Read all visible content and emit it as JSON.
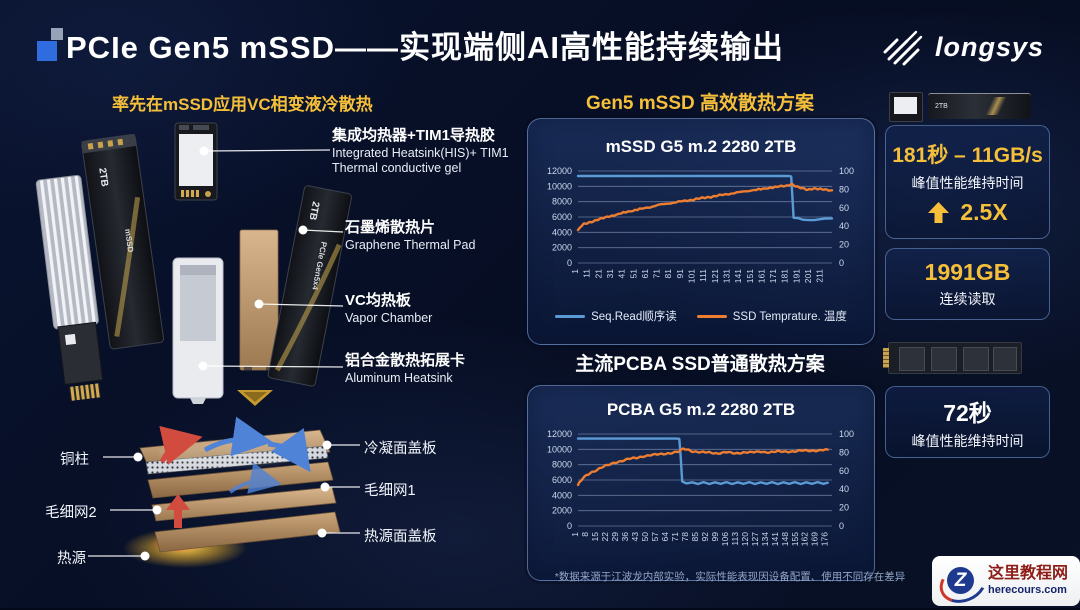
{
  "palette": {
    "gold": "#f5bf3a",
    "blue_line": "#5b9bd5",
    "orange_line": "#ed7d31"
  },
  "header": {
    "title": "PCIe Gen5 mSSD——实现端侧AI高性能持续输出",
    "brand": "longsys"
  },
  "left": {
    "heading": "率先在mSSD应用VC相变液冷散热",
    "capacity_label": "2TB",
    "series_label": "mSSD",
    "interface_label": "PCIe Gen5x4",
    "callouts": [
      {
        "zh": "集成均热器+TIM1导热胶",
        "en": "Integrated Heatsink(HIS)+ TIM1\nThermal conductive gel"
      },
      {
        "zh": "石墨烯散热片",
        "en": "Graphene Thermal Pad"
      },
      {
        "zh": "VC均热板",
        "en": "Vapor Chamber"
      },
      {
        "zh": "铝合金散热拓展卡",
        "en": "Aluminum Heatsink"
      }
    ],
    "vc_labels_left": [
      "铜柱",
      "毛细网2",
      "热源"
    ],
    "vc_labels_right": [
      "冷凝面盖板",
      "毛细网1",
      "热源面盖板"
    ]
  },
  "middle": {
    "section1_heading": "Gen5 mSSD 高效散热方案",
    "section2_heading": "主流PCBA SSD普通散热方案",
    "footnote": "*数据来源于江波龙内部实验，实际性能表现因设备配置、使用不同存在差异"
  },
  "right": {
    "cards": [
      {
        "value": "181秒 – 11GB/s",
        "label": "峰值性能维持时间",
        "boost": "2.5X"
      },
      {
        "value": "1991GB",
        "label": "连续读取"
      },
      {
        "value": "72秒",
        "label": "峰值性能维持时间"
      }
    ]
  },
  "watermark": {
    "letter": "Z",
    "site": "这里教程网",
    "domain": "herecours.com"
  },
  "chart_data": [
    {
      "type": "line",
      "title": "mSSD G5 m.2 2280 2TB",
      "x_ticks": [
        1,
        11,
        21,
        31,
        41,
        51,
        61,
        71,
        81,
        91,
        101,
        111,
        121,
        131,
        141,
        151,
        161,
        171,
        181,
        191,
        201,
        211
      ],
      "xlim": [
        1,
        219
      ],
      "ylim_left": [
        0,
        12000
      ],
      "yticks_left": [
        0,
        2000,
        4000,
        6000,
        8000,
        10000,
        12000
      ],
      "ylim_right": [
        0,
        100
      ],
      "yticks_right": [
        0,
        20,
        40,
        60,
        80,
        100
      ],
      "legend": [
        {
          "label": "Seq.Read顺序读",
          "color": "#5b9bd5"
        },
        {
          "label": "SSD Temprature. 温度",
          "color": "#ed7d31"
        }
      ],
      "series": [
        {
          "name": "Seq.Read顺序读",
          "axis": "left",
          "color": "#5b9bd5",
          "points": [
            [
              1,
              11350
            ],
            [
              182,
              11350
            ],
            [
              184,
              11300
            ],
            [
              186,
              5900
            ],
            [
              190,
              5850
            ],
            [
              194,
              5650
            ],
            [
              199,
              5600
            ],
            [
              204,
              5600
            ],
            [
              208,
              5700
            ],
            [
              213,
              5800
            ],
            [
              219,
              5820
            ]
          ]
        },
        {
          "name": "SSD Temprature. 温度",
          "axis": "right",
          "color": "#ed7d31",
          "points": [
            [
              1,
              35
            ],
            [
              3,
              39
            ],
            [
              6,
              42
            ],
            [
              10,
              44
            ],
            [
              15,
              46
            ],
            [
              21,
              48
            ],
            [
              28,
              51
            ],
            [
              36,
              53
            ],
            [
              44,
              56
            ],
            [
              52,
              58
            ],
            [
              60,
              60
            ],
            [
              70,
              63
            ],
            [
              80,
              65
            ],
            [
              90,
              67
            ],
            [
              100,
              69
            ],
            [
              110,
              71
            ],
            [
              120,
              73
            ],
            [
              130,
              75
            ],
            [
              140,
              77
            ],
            [
              150,
              79
            ],
            [
              158,
              80
            ],
            [
              166,
              82
            ],
            [
              174,
              83
            ],
            [
              180,
              84
            ],
            [
              184,
              86
            ],
            [
              187,
              84
            ],
            [
              190,
              82
            ],
            [
              194,
              81
            ],
            [
              198,
              80
            ],
            [
              203,
              81
            ],
            [
              208,
              80
            ],
            [
              213,
              80
            ],
            [
              219,
              79
            ]
          ]
        }
      ]
    },
    {
      "type": "line",
      "title": "PCBA G5 m.2 2280 2TB",
      "x_ticks": [
        1,
        8,
        15,
        22,
        29,
        36,
        43,
        50,
        57,
        64,
        71,
        78,
        85,
        92,
        99,
        106,
        113,
        120,
        127,
        134,
        141,
        148,
        155,
        162,
        169,
        176
      ],
      "xlim": [
        1,
        179
      ],
      "ylim_left": [
        0,
        12000
      ],
      "yticks_left": [
        0,
        2000,
        4000,
        6000,
        8000,
        10000,
        12000
      ],
      "ylim_right": [
        0,
        100
      ],
      "yticks_right": [
        0,
        20,
        40,
        60,
        80,
        100
      ],
      "legend": [],
      "series": [
        {
          "name": "Seq.Read顺序读",
          "axis": "left",
          "color": "#5b9bd5",
          "points": [
            [
              1,
              11400
            ],
            [
              70,
              11400
            ],
            [
              72,
              11380
            ],
            [
              73,
              9000
            ],
            [
              74,
              5800
            ],
            [
              77,
              5550
            ],
            [
              81,
              5700
            ],
            [
              85,
              5480
            ],
            [
              89,
              5720
            ],
            [
              93,
              5480
            ],
            [
              97,
              5700
            ],
            [
              101,
              5500
            ],
            [
              105,
              5720
            ],
            [
              109,
              5480
            ],
            [
              113,
              5700
            ],
            [
              117,
              5500
            ],
            [
              121,
              5720
            ],
            [
              125,
              5480
            ],
            [
              129,
              5700
            ],
            [
              133,
              5500
            ],
            [
              137,
              5720
            ],
            [
              141,
              5480
            ],
            [
              145,
              5700
            ],
            [
              149,
              5500
            ],
            [
              153,
              5720
            ],
            [
              157,
              5480
            ],
            [
              161,
              5700
            ],
            [
              165,
              5500
            ],
            [
              169,
              5720
            ],
            [
              173,
              5500
            ],
            [
              176,
              5650
            ]
          ]
        },
        {
          "name": "SSD Temprature. 温度",
          "axis": "right",
          "color": "#ed7d31",
          "points": [
            [
              1,
              44
            ],
            [
              2,
              47
            ],
            [
              4,
              51
            ],
            [
              7,
              55
            ],
            [
              10,
              58
            ],
            [
              14,
              61
            ],
            [
              18,
              64
            ],
            [
              22,
              66
            ],
            [
              27,
              69
            ],
            [
              32,
              71
            ],
            [
              37,
              73
            ],
            [
              42,
              74
            ],
            [
              47,
              76
            ],
            [
              52,
              77
            ],
            [
              58,
              78
            ],
            [
              64,
              79
            ],
            [
              69,
              80
            ],
            [
              72,
              81
            ],
            [
              75,
              84
            ],
            [
              78,
              83
            ],
            [
              82,
              81
            ],
            [
              87,
              80
            ],
            [
              93,
              80
            ],
            [
              99,
              79
            ],
            [
              105,
              80
            ],
            [
              111,
              79
            ],
            [
              117,
              80
            ],
            [
              123,
              80
            ],
            [
              129,
              81
            ],
            [
              135,
              80
            ],
            [
              141,
              81
            ],
            [
              147,
              81
            ],
            [
              153,
              81
            ],
            [
              159,
              82
            ],
            [
              165,
              82
            ],
            [
              170,
              82
            ],
            [
              176,
              83
            ]
          ]
        }
      ]
    }
  ]
}
